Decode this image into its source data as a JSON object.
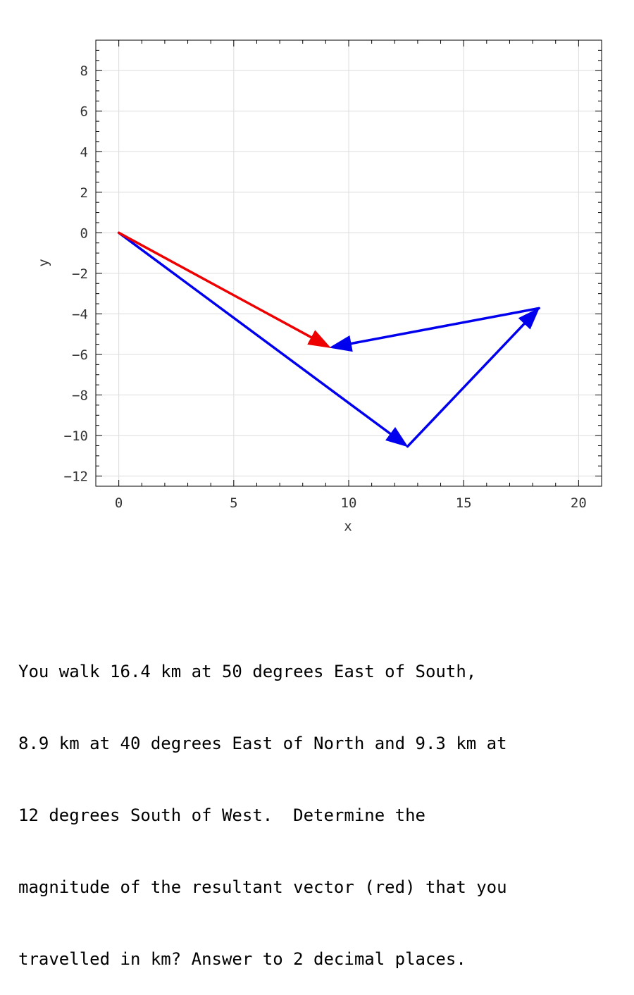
{
  "chart_data": {
    "type": "vector-plot",
    "xlabel": "x",
    "ylabel": "y",
    "xlim": [
      -1,
      21
    ],
    "ylim": [
      -12.5,
      9.5
    ],
    "x_ticks": [
      0,
      5,
      10,
      15,
      20
    ],
    "y_ticks": [
      8,
      6,
      4,
      2,
      0,
      -2,
      -4,
      -6,
      -8,
      -10,
      -12
    ],
    "x_tick_labels": [
      "0",
      "5",
      "10",
      "15",
      "20"
    ],
    "y_tick_labels": [
      "8",
      "6",
      "4",
      "2",
      "0",
      "−2",
      "−4",
      "−6",
      "−8",
      "−10",
      "−12"
    ],
    "grid": true,
    "vectors": [
      {
        "from": [
          0,
          0
        ],
        "to": [
          12.56,
          -10.54
        ],
        "color": "#0000ee"
      },
      {
        "from": [
          12.56,
          -10.54
        ],
        "to": [
          18.28,
          -3.72
        ],
        "color": "#0000ee"
      },
      {
        "from": [
          18.28,
          -3.72
        ],
        "to": [
          9.19,
          -5.66
        ],
        "color": "#0000ee"
      },
      {
        "from": [
          0,
          0
        ],
        "to": [
          9.19,
          -5.66
        ],
        "color": "#ee0000"
      }
    ]
  },
  "question": {
    "lines": [
      "You walk 16.4 km at 50 degrees East of South,",
      "8.9 km at 40 degrees East of North and 9.3 km at",
      "12 degrees South of West.  Determine the",
      "magnitude of the resultant vector (red) that you",
      "travelled in km? Answer to 2 decimal places."
    ]
  }
}
